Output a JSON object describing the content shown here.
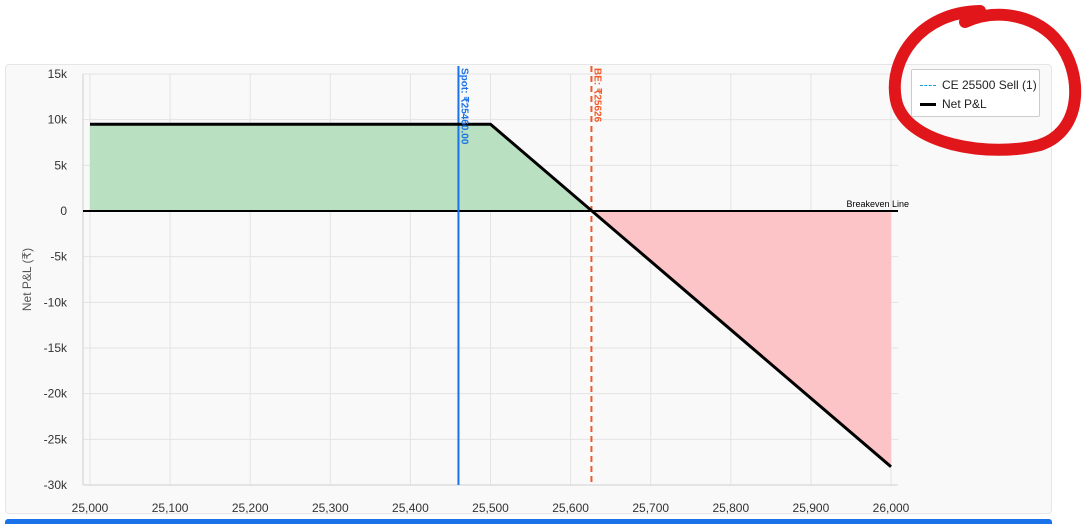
{
  "chart_data": {
    "type": "line",
    "x": [
      25000,
      25500,
      26000
    ],
    "series": [
      {
        "name": "Net P&L",
        "values": [
          9500,
          9500,
          -28000
        ],
        "color": "#000000"
      }
    ],
    "xlim": [
      25000,
      26000
    ],
    "ylim": [
      -30000,
      15000
    ],
    "xticks": [
      25000,
      25100,
      25200,
      25300,
      25400,
      25500,
      25600,
      25700,
      25800,
      25900,
      26000
    ],
    "xtick_labels": [
      "25,000",
      "25,100",
      "25,200",
      "25,300",
      "25,400",
      "25,500",
      "25,600",
      "25,700",
      "25,800",
      "25,900",
      "26,000"
    ],
    "yticks": [
      15000,
      10000,
      5000,
      0,
      -5000,
      -10000,
      -15000,
      -20000,
      -25000,
      -30000
    ],
    "ytick_labels": [
      "15k",
      "10k",
      "5k",
      "0",
      "-5k",
      "-10k",
      "-15k",
      "-20k",
      "-25k",
      "-30k"
    ],
    "xlabel": "",
    "ylabel": "Net P&L (₹)",
    "grid": true,
    "fill_profit_color": "#b8e0c1",
    "fill_loss_color": "#fcc4c6",
    "breakeven_line": {
      "y": 0,
      "label": "Breakeven Line"
    },
    "spot_line": {
      "x": 25460,
      "label": "Spot: ₹25460.00",
      "color": "#1a73e8"
    },
    "breakeven_marker": {
      "x": 25626,
      "label": "BE: ₹25626",
      "color": "#f05a28"
    },
    "legend": {
      "placement": "top-right",
      "entries": [
        "CE 25500 Sell (1)",
        "Net P&L"
      ]
    }
  },
  "annotation": {
    "color": "#e0161b"
  }
}
